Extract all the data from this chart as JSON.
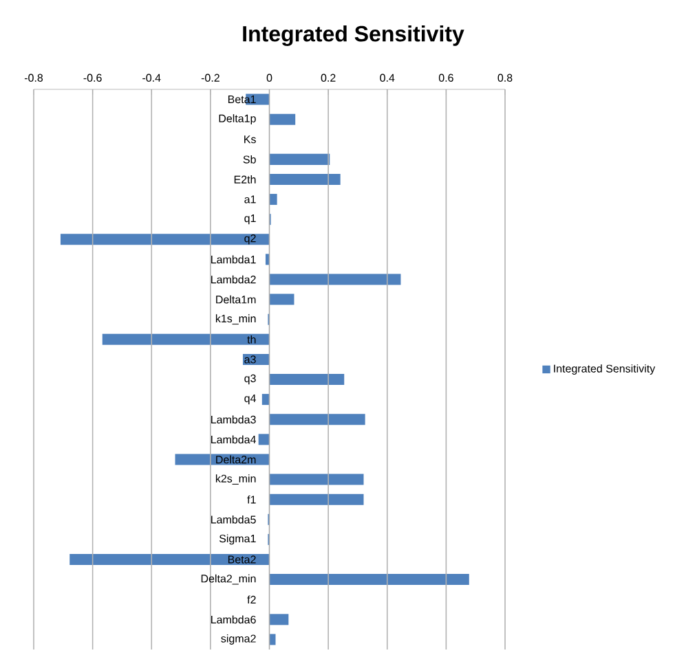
{
  "chart_data": {
    "type": "bar",
    "orientation": "horizontal",
    "title": "Integrated Sensitivity",
    "categories": [
      "Beta1",
      "Delta1p",
      "Ks",
      "Sb",
      "E2th",
      "a1",
      "q1",
      "q2",
      "Lambda1",
      "Lambda2",
      "Delta1m",
      "k1s_min",
      "th",
      "a3",
      "q3",
      "q4",
      "Lambda3",
      "Lambda4",
      "Delta2m",
      "k2s_min",
      "f1",
      "Lambda5",
      "Sigma1",
      "Beta2",
      "Delta2_min",
      "f2",
      "Lambda6",
      "sigma2"
    ],
    "series": [
      {
        "name": "Integrated Sensitivity",
        "color": "#4f81bd",
        "values": [
          -0.08,
          0.088,
          0,
          0.205,
          0.241,
          0.026,
          0.005,
          -0.709,
          -0.013,
          0.446,
          0.084,
          -0.005,
          -0.567,
          -0.09,
          0.254,
          -0.025,
          0.325,
          -0.037,
          -0.32,
          0.32,
          0.32,
          -0.005,
          -0.005,
          -0.678,
          0.678,
          0,
          0.065,
          0.021
        ]
      }
    ],
    "xlim": [
      -0.8,
      0.8
    ],
    "xticks": [
      -0.8,
      -0.6,
      -0.4,
      -0.2,
      0,
      0.2,
      0.4,
      0.6,
      0.8
    ],
    "grid": "x",
    "legend": "right"
  }
}
